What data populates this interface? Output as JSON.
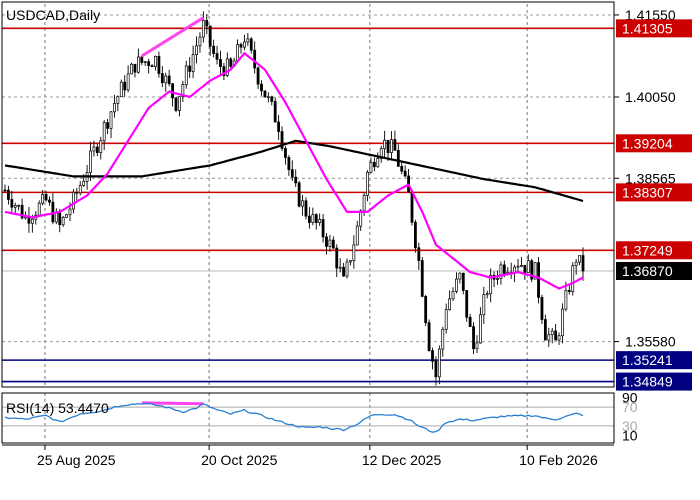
{
  "chart_data": {
    "type": "candlestick",
    "title": "USDCAD,Daily",
    "price_axis": {
      "ylim": [
        1.3475,
        1.4175
      ],
      "ticks": [
        "1.41550",
        "1.40050",
        "1.38565",
        "1.35580"
      ],
      "tick_values": [
        1.4155,
        1.4005,
        1.38565,
        1.3558
      ]
    },
    "x_axis": {
      "labels": [
        "25 Aug 2025",
        "20 Oct 2025",
        "12 Dec 2025",
        "10 Feb 2026"
      ],
      "label_bar_index": [
        7,
        55,
        102,
        148
      ]
    },
    "horizontal_levels": [
      {
        "label": "1.41305",
        "value": 1.41305,
        "color": "#cc0000"
      },
      {
        "label": "1.39204",
        "value": 1.39204,
        "color": "#cc0000"
      },
      {
        "label": "1.38307",
        "value": 1.38307,
        "color": "#cc0000"
      },
      {
        "label": "1.37249",
        "value": 1.37249,
        "color": "#cc0000"
      },
      {
        "label": "1.35241",
        "value": 1.35241,
        "color": "#000080"
      },
      {
        "label": "1.34849",
        "value": 1.34849,
        "color": "#000080"
      }
    ],
    "current_price": {
      "label": "1.36870",
      "value": 1.3687
    },
    "close_series_anchors": [
      [
        0,
        1.3835
      ],
      [
        6,
        1.3785
      ],
      [
        12,
        1.3815
      ],
      [
        16,
        1.3768
      ],
      [
        20,
        1.3815
      ],
      [
        26,
        1.3905
      ],
      [
        32,
        1.3995
      ],
      [
        38,
        1.4065
      ],
      [
        44,
        1.4075
      ],
      [
        50,
        1.3995
      ],
      [
        54,
        1.4065
      ],
      [
        58,
        1.4135
      ],
      [
        62,
        1.4065
      ],
      [
        66,
        1.4055
      ],
      [
        70,
        1.4115
      ],
      [
        75,
        1.4025
      ],
      [
        80,
        1.3955
      ],
      [
        84,
        1.3845
      ],
      [
        88,
        1.3795
      ],
      [
        92,
        1.3765
      ],
      [
        96,
        1.3725
      ],
      [
        99,
        1.3665
      ],
      [
        103,
        1.3765
      ],
      [
        106,
        1.3865
      ],
      [
        110,
        1.3925
      ],
      [
        114,
        1.3905
      ],
      [
        118,
        1.3825
      ],
      [
        121,
        1.3705
      ],
      [
        124,
        1.3555
      ],
      [
        126,
        1.3495
      ],
      [
        129,
        1.3625
      ],
      [
        133,
        1.3675
      ],
      [
        137,
        1.3545
      ],
      [
        141,
        1.3655
      ],
      [
        145,
        1.3695
      ],
      [
        150,
        1.3705
      ],
      [
        155,
        1.3685
      ],
      [
        158,
        1.3575
      ],
      [
        161,
        1.3555
      ],
      [
        164,
        1.3635
      ],
      [
        167,
        1.3712
      ],
      [
        169,
        1.3687
      ]
    ],
    "ma_fast": {
      "color": "#ff00ff",
      "points": [
        [
          0,
          1.3795
        ],
        [
          8,
          1.3785
        ],
        [
          16,
          1.3795
        ],
        [
          24,
          1.3825
        ],
        [
          30,
          1.3865
        ],
        [
          36,
          1.3925
        ],
        [
          42,
          1.3985
        ],
        [
          48,
          1.4015
        ],
        [
          54,
          1.4005
        ],
        [
          60,
          1.4035
        ],
        [
          66,
          1.4055
        ],
        [
          70,
          1.4085
        ],
        [
          76,
          1.4055
        ],
        [
          82,
          1.3995
        ],
        [
          88,
          1.3925
        ],
        [
          94,
          1.3855
        ],
        [
          100,
          1.3795
        ],
        [
          106,
          1.3795
        ],
        [
          112,
          1.3825
        ],
        [
          118,
          1.3845
        ],
        [
          122,
          1.3795
        ],
        [
          126,
          1.3735
        ],
        [
          130,
          1.3715
        ],
        [
          136,
          1.3685
        ],
        [
          142,
          1.3675
        ],
        [
          150,
          1.3685
        ],
        [
          156,
          1.3675
        ],
        [
          162,
          1.3655
        ],
        [
          166,
          1.3665
        ],
        [
          169,
          1.3675
        ]
      ]
    },
    "ma_slow": {
      "color": "#000000",
      "points": [
        [
          0,
          1.388
        ],
        [
          20,
          1.386
        ],
        [
          40,
          1.386
        ],
        [
          60,
          1.388
        ],
        [
          75,
          1.3905
        ],
        [
          85,
          1.3925
        ],
        [
          95,
          1.3915
        ],
        [
          110,
          1.3895
        ],
        [
          125,
          1.3875
        ],
        [
          140,
          1.3855
        ],
        [
          155,
          1.384
        ],
        [
          169,
          1.3815
        ]
      ]
    },
    "rsi": {
      "title": "RSI(14) 53.4470",
      "ylim": [
        0,
        100
      ],
      "ticks": [
        "90",
        "70",
        "30",
        "10"
      ],
      "tick_values": [
        90,
        70,
        30,
        10
      ],
      "color": "#2a7fd4",
      "points": [
        [
          0,
          48
        ],
        [
          6,
          44
        ],
        [
          12,
          52
        ],
        [
          16,
          38
        ],
        [
          22,
          56
        ],
        [
          28,
          62
        ],
        [
          34,
          74
        ],
        [
          40,
          78
        ],
        [
          46,
          72
        ],
        [
          52,
          60
        ],
        [
          56,
          68
        ],
        [
          58,
          76
        ],
        [
          62,
          64
        ],
        [
          66,
          55
        ],
        [
          70,
          63
        ],
        [
          75,
          52
        ],
        [
          80,
          40
        ],
        [
          84,
          32
        ],
        [
          88,
          26
        ],
        [
          92,
          28
        ],
        [
          96,
          24
        ],
        [
          99,
          22
        ],
        [
          103,
          34
        ],
        [
          107,
          52
        ],
        [
          110,
          55
        ],
        [
          114,
          54
        ],
        [
          118,
          44
        ],
        [
          121,
          30
        ],
        [
          124,
          20
        ],
        [
          126,
          16
        ],
        [
          129,
          38
        ],
        [
          133,
          44
        ],
        [
          137,
          42
        ],
        [
          141,
          46
        ],
        [
          145,
          50
        ],
        [
          150,
          51
        ],
        [
          155,
          52
        ],
        [
          158,
          46
        ],
        [
          161,
          44
        ],
        [
          164,
          50
        ],
        [
          167,
          56
        ],
        [
          169,
          53
        ]
      ]
    },
    "annotations": [
      {
        "type": "divergence-line",
        "panel": "price",
        "from": [
          40,
          1.408
        ],
        "to": [
          58,
          1.415
        ],
        "color": "#ff44ee"
      },
      {
        "type": "divergence-line",
        "panel": "rsi",
        "from": [
          40,
          79
        ],
        "to": [
          58,
          77
        ],
        "color": "#ff44ee"
      }
    ],
    "grid": true,
    "bar_count": 170
  }
}
